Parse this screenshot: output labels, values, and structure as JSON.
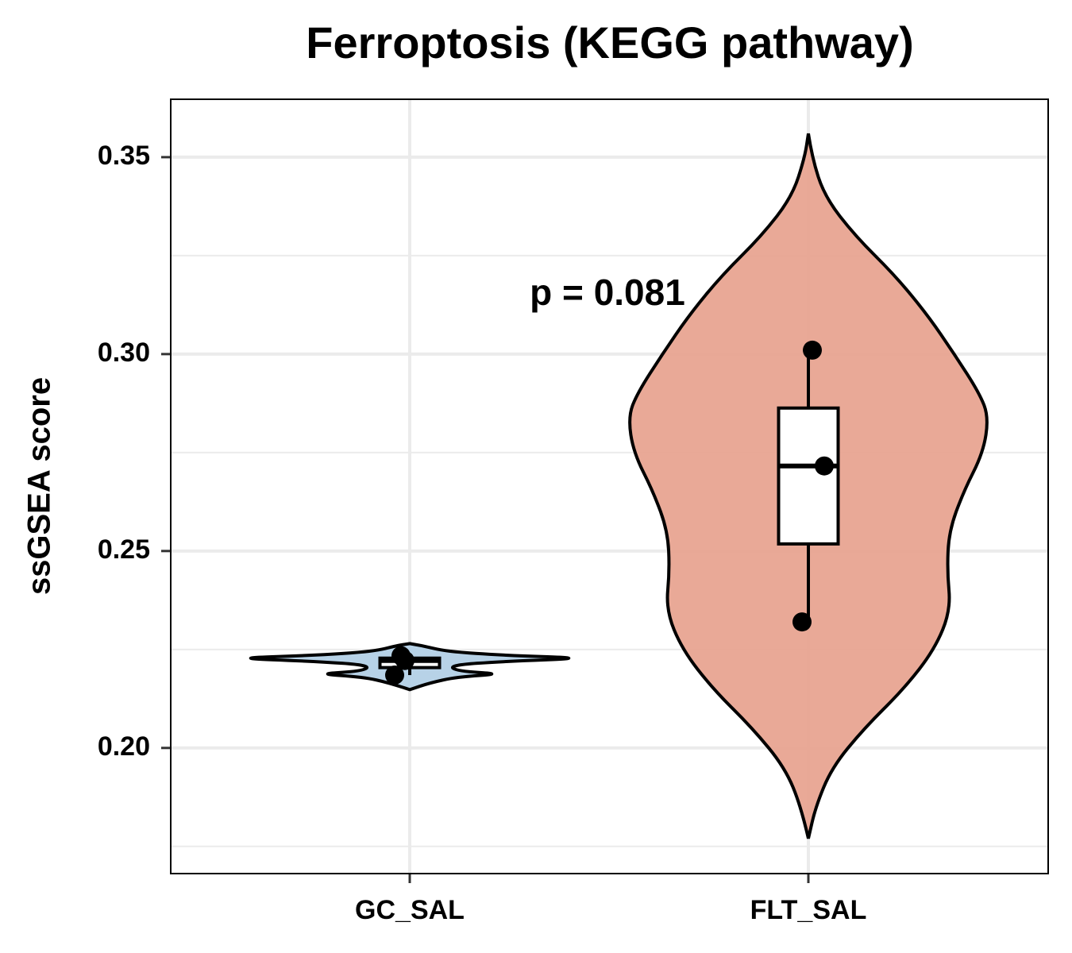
{
  "chart_data": {
    "type": "violin",
    "title": "Ferroptosis (KEGG pathway)",
    "y_label": "ssGSEA score",
    "annotation": "p = 0.081",
    "categories": [
      "GC_SAL",
      "FLT_SAL"
    ],
    "ylim": [
      0.1681,
      0.3647
    ],
    "yticks": [
      {
        "value": 0.2,
        "label": "0.20"
      },
      {
        "value": 0.25,
        "label": "0.25"
      },
      {
        "value": 0.3,
        "label": "0.30"
      },
      {
        "value": 0.35,
        "label": "0.35"
      }
    ],
    "y_minor_grid": [
      0.175,
      0.225,
      0.275,
      0.325
    ],
    "grid": true,
    "groups": [
      {
        "color": "#b3d0e6",
        "violin": {
          "y": [
            0.2265,
            0.226,
            0.2245,
            0.2235,
            0.2228,
            0.222,
            0.221,
            0.2195,
            0.2188,
            0.218,
            0.2165,
            0.2148
          ],
          "width": [
            0,
            0.07,
            0.2,
            0.53,
            1,
            0.53,
            0.22,
            0.26,
            0.52,
            0.26,
            0.11,
            0
          ]
        },
        "box": {
          "min": 0.2185,
          "q1": 0.2204,
          "median": 0.2222,
          "q3": 0.2228,
          "max": 0.2234
        },
        "points": [
          0.2234,
          0.2185,
          0.2222
        ]
      },
      {
        "color": "#e8a491",
        "violin": {
          "y": [
            0.356,
            0.35,
            0.34,
            0.33,
            0.32,
            0.31,
            0.3,
            0.29,
            0.284,
            0.275,
            0.265,
            0.255,
            0.245,
            0.235,
            0.225,
            0.215,
            0.205,
            0.195,
            0.185,
            0.177
          ],
          "width": [
            0,
            0.02,
            0.09,
            0.26,
            0.48,
            0.66,
            0.81,
            0.95,
            1,
            0.97,
            0.86,
            0.78,
            0.77,
            0.79,
            0.7,
            0.53,
            0.31,
            0.13,
            0.04,
            0
          ]
        },
        "box": {
          "min": 0.232,
          "q1": 0.2518,
          "median": 0.2716,
          "q3": 0.2863,
          "max": 0.301
        },
        "points": [
          0.301,
          0.2716,
          0.232
        ]
      }
    ]
  }
}
